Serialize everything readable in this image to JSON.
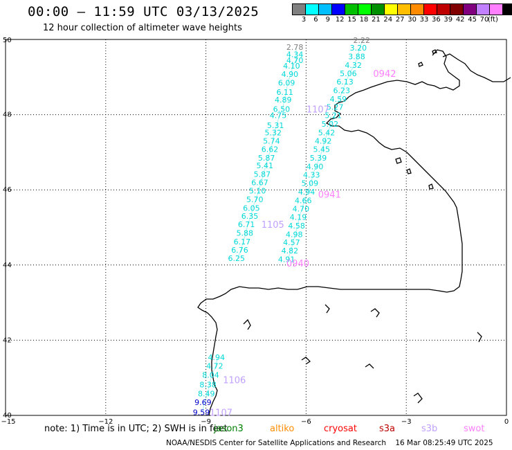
{
  "header": {
    "title": "00:00 – 11:59 UTC 03/13/2025",
    "subtitle": "12 hour collection of altimeter wave heights"
  },
  "legend": {
    "colors": [
      "#808080",
      "#00ffff",
      "#00bfff",
      "#0000ff",
      "#00bf00",
      "#00ff00",
      "#008f00",
      "#ffff00",
      "#ffbf00",
      "#ff8c00",
      "#ff0000",
      "#bf0000",
      "#800000",
      "#800080",
      "#c080ff",
      "#ff80ff",
      "#000000"
    ],
    "labels": [
      "3",
      "6",
      "9",
      "12",
      "15",
      "18",
      "21",
      "24",
      "27",
      "30",
      "33",
      "36",
      "39",
      "42",
      "45",
      "70",
      "(ft)"
    ]
  },
  "axes": {
    "lon_labels": [
      "−15",
      "−12",
      "−9",
      "−6",
      "−3",
      "0"
    ],
    "lat_labels": [
      "50",
      "48",
      "46",
      "44",
      "42",
      "40"
    ]
  },
  "note": {
    "text": "note: 1) Time is in UTC; 2) SWH is in feet",
    "missions": [
      {
        "name": "jason3",
        "color": "#008000"
      },
      {
        "name": "altiko",
        "color": "#ff8c00"
      },
      {
        "name": "cryosat",
        "color": "#ff0000"
      },
      {
        "name": "s3a",
        "color": "#bf0000"
      },
      {
        "name": "s3b",
        "color": "#c0a0ff"
      },
      {
        "name": "swot",
        "color": "#ff80ff"
      }
    ]
  },
  "footer": {
    "credit": "NOAA/NESDIS Center for Satellite Applications and Research",
    "timestamp": "16 Mar 08:25:49 UTC 2025"
  },
  "map_data": {
    "tracks": [
      {
        "name": "track-west",
        "color": "#00d8d8",
        "values": [
          {
            "lon": -6.3,
            "lat": 49.8,
            "label": "2.78",
            "color": "#808080"
          },
          {
            "lon": -6.3,
            "lat": 49.6,
            "label": "4.34"
          },
          {
            "lon": -6.3,
            "lat": 49.45,
            "label": "4.70"
          },
          {
            "lon": -6.4,
            "lat": 49.3,
            "label": "4.10"
          },
          {
            "lon": -6.45,
            "lat": 49.08,
            "label": "4.90"
          },
          {
            "lon": -6.55,
            "lat": 48.85,
            "label": "6.09"
          },
          {
            "lon": -6.6,
            "lat": 48.6,
            "label": "6.11"
          },
          {
            "lon": -6.65,
            "lat": 48.4,
            "label": "4.89"
          },
          {
            "lon": -6.7,
            "lat": 48.15,
            "label": "6.50"
          },
          {
            "lon": -6.8,
            "lat": 47.98,
            "label": "4.75"
          },
          {
            "lon": -6.88,
            "lat": 47.72,
            "label": "5.31"
          },
          {
            "lon": -6.95,
            "lat": 47.52,
            "label": "5.32"
          },
          {
            "lon": -7.0,
            "lat": 47.3,
            "label": "5.74"
          },
          {
            "lon": -7.05,
            "lat": 47.08,
            "label": "6.62"
          },
          {
            "lon": -7.15,
            "lat": 46.85,
            "label": "5.87"
          },
          {
            "lon": -7.2,
            "lat": 46.65,
            "label": "5.41"
          },
          {
            "lon": -7.28,
            "lat": 46.42,
            "label": "5.87"
          },
          {
            "lon": -7.35,
            "lat": 46.2,
            "label": "6.67"
          },
          {
            "lon": -7.42,
            "lat": 45.98,
            "label": "5.10"
          },
          {
            "lon": -7.5,
            "lat": 45.75,
            "label": "5.70"
          },
          {
            "lon": -7.6,
            "lat": 45.52,
            "label": "6.05"
          },
          {
            "lon": -7.65,
            "lat": 45.3,
            "label": "6.35"
          },
          {
            "lon": -7.75,
            "lat": 45.08,
            "label": "6.71"
          },
          {
            "lon": -7.8,
            "lat": 44.85,
            "label": "5.88"
          },
          {
            "lon": -7.88,
            "lat": 44.62,
            "label": "6.17"
          },
          {
            "lon": -7.95,
            "lat": 44.4,
            "label": "6.76"
          },
          {
            "lon": -8.05,
            "lat": 44.18,
            "label": "6.25"
          }
        ]
      },
      {
        "name": "track-east",
        "color": "#00d8d8",
        "values": [
          {
            "lon": -4.3,
            "lat": 49.98,
            "label": "2.22",
            "color": "#808080"
          },
          {
            "lon": -4.4,
            "lat": 49.78,
            "label": "3.20"
          },
          {
            "lon": -4.45,
            "lat": 49.55,
            "label": "3.88"
          },
          {
            "lon": -4.55,
            "lat": 49.32,
            "label": "4.32"
          },
          {
            "lon": -4.7,
            "lat": 49.1,
            "label": "5.06"
          },
          {
            "lon": -4.8,
            "lat": 48.88,
            "label": "6.13"
          },
          {
            "lon": -4.9,
            "lat": 48.65,
            "label": "6.23"
          },
          {
            "lon": -5.0,
            "lat": 48.42,
            "label": "4.59"
          },
          {
            "lon": -5.1,
            "lat": 48.2,
            "label": "5.27"
          },
          {
            "lon": -5.15,
            "lat": 47.98,
            "label": "5.21"
          },
          {
            "lon": -5.25,
            "lat": 47.75,
            "label": "5.02"
          },
          {
            "lon": -5.35,
            "lat": 47.52,
            "label": "5.42"
          },
          {
            "lon": -5.45,
            "lat": 47.3,
            "label": "4.92"
          },
          {
            "lon": -5.5,
            "lat": 47.08,
            "label": "5.45"
          },
          {
            "lon": -5.6,
            "lat": 46.85,
            "label": "5.39"
          },
          {
            "lon": -5.7,
            "lat": 46.62,
            "label": "4.90"
          },
          {
            "lon": -5.8,
            "lat": 46.4,
            "label": "4.33"
          },
          {
            "lon": -5.85,
            "lat": 46.18,
            "label": "5.09"
          },
          {
            "lon": -5.95,
            "lat": 45.95,
            "label": "4.94"
          },
          {
            "lon": -6.05,
            "lat": 45.72,
            "label": "4.66"
          },
          {
            "lon": -6.12,
            "lat": 45.5,
            "label": "4.70"
          },
          {
            "lon": -6.2,
            "lat": 45.28,
            "label": "4.19"
          },
          {
            "lon": -6.25,
            "lat": 45.05,
            "label": "4.58"
          },
          {
            "lon": -6.32,
            "lat": 44.82,
            "label": "4.98"
          },
          {
            "lon": -6.4,
            "lat": 44.6,
            "label": "4.57"
          },
          {
            "lon": -6.45,
            "lat": 44.38,
            "label": "4.82"
          },
          {
            "lon": -6.55,
            "lat": 44.15,
            "label": "4.91"
          }
        ]
      },
      {
        "name": "track-south",
        "color": "#00d8d8",
        "values": [
          {
            "lon": -8.65,
            "lat": 41.55,
            "label": "4.94"
          },
          {
            "lon": -8.7,
            "lat": 41.32,
            "label": "4.72"
          },
          {
            "lon": -8.82,
            "lat": 41.08,
            "label": "8.04"
          },
          {
            "lon": -8.9,
            "lat": 40.82,
            "label": "8.38"
          },
          {
            "lon": -8.95,
            "lat": 40.58,
            "label": "8.49"
          },
          {
            "lon": -9.05,
            "lat": 40.35,
            "label": "9.69",
            "color": "#0000cc"
          },
          {
            "lon": -9.1,
            "lat": 40.08,
            "label": "9.59",
            "color": "#0000cc"
          }
        ]
      }
    ],
    "pass_times": [
      {
        "label": "0942",
        "lon": -3.7,
        "lat": 49.1,
        "color": "#ff80ff"
      },
      {
        "label": "0941",
        "lon": -5.35,
        "lat": 45.88,
        "color": "#ff80ff"
      },
      {
        "label": "0940",
        "lon": -6.3,
        "lat": 44.05,
        "color": "#ff80ff"
      },
      {
        "label": "1107",
        "lon": -5.7,
        "lat": 48.15,
        "color": "#c0a0ff"
      },
      {
        "label": "1105",
        "lon": -7.05,
        "lat": 45.08,
        "color": "#c0a0ff"
      },
      {
        "label": "1106",
        "lon": -8.2,
        "lat": 40.95,
        "color": "#c0a0ff"
      },
      {
        "label": "1107",
        "lon": -8.6,
        "lat": 40.08,
        "color": "#c0a0ff"
      }
    ]
  }
}
